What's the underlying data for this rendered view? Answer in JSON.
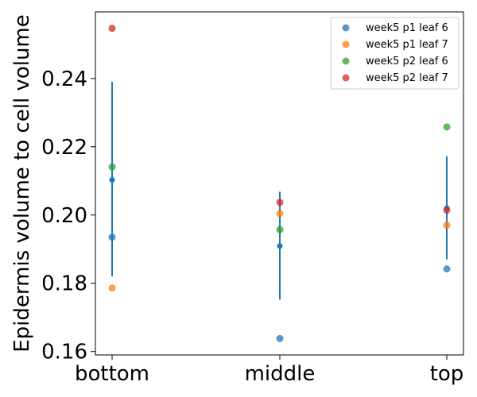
{
  "chart_data": {
    "type": "scatter",
    "categories": [
      "bottom",
      "middle",
      "top"
    ],
    "ylabel": "Epidermis volume to cell volume",
    "xlabel": "",
    "ylim": [
      0.159,
      0.2595
    ],
    "yticks": [
      0.16,
      0.18,
      0.2,
      0.22,
      0.24
    ],
    "ytick_labels": [
      "0.16",
      "0.18",
      "0.20",
      "0.22",
      "0.24"
    ],
    "grid": false,
    "legend_position": "top-right",
    "series": [
      {
        "name": "week5 p1 leaf 6",
        "color": "#1f77b4",
        "values": [
          0.1935,
          0.1638,
          0.1842
        ]
      },
      {
        "name": "week5 p1 leaf 7",
        "color": "#ff7f0e",
        "values": [
          0.1786,
          0.2004,
          0.197
        ]
      },
      {
        "name": "week5 p2 leaf 6",
        "color": "#2ca02c",
        "values": [
          0.2141,
          0.1957,
          0.2258
        ]
      },
      {
        "name": "week5 p2 leaf 7",
        "color": "#d62728",
        "values": [
          0.2547,
          0.2037,
          0.2014
        ]
      }
    ],
    "summary": {
      "color": "#1f77b4",
      "mean": [
        0.2103,
        0.1909,
        0.202
      ],
      "error_low": [
        0.182,
        0.1752,
        0.187
      ],
      "error_high": [
        0.239,
        0.2068,
        0.2172
      ]
    }
  }
}
